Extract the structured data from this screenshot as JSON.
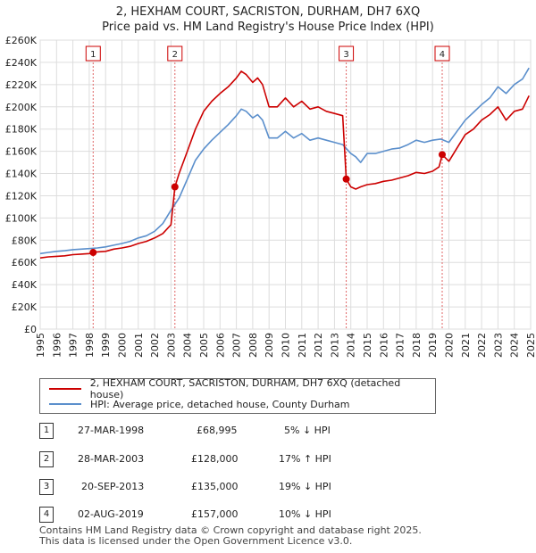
{
  "title_line1": "2, HEXHAM COURT, SACRISTON, DURHAM, DH7 6XQ",
  "title_line2": "Price paid vs. HM Land Registry's House Price Index (HPI)",
  "colors": {
    "property": "#cc0000",
    "hpi": "#5b8fcc",
    "marker_line": "#e06666",
    "grid": "#dddddd"
  },
  "legend": [
    {
      "label": "2, HEXHAM COURT, SACRISTON, DURHAM, DH7 6XQ (detached house)",
      "color": "#cc0000"
    },
    {
      "label": "HPI: Average price, detached house, County Durham",
      "color": "#5b8fcc"
    }
  ],
  "transactions": [
    {
      "num": "1",
      "date": "27-MAR-1998",
      "price": "£68,995",
      "hpi": "5% ↓ HPI"
    },
    {
      "num": "2",
      "date": "28-MAR-2003",
      "price": "£128,000",
      "hpi": "17% ↑ HPI"
    },
    {
      "num": "3",
      "date": "20-SEP-2013",
      "price": "£135,000",
      "hpi": "19% ↓ HPI"
    },
    {
      "num": "4",
      "date": "02-AUG-2019",
      "price": "£157,000",
      "hpi": "10% ↓ HPI"
    }
  ],
  "footer_line1": "Contains HM Land Registry data © Crown copyright and database right 2025.",
  "footer_line2": "This data is licensed under the Open Government Licence v3.0.",
  "chart_data": {
    "type": "line",
    "title": "2, HEXHAM COURT, SACRISTON, DURHAM, DH7 6XQ — Price paid vs. HM Land Registry's House Price Index (HPI)",
    "xlabel": "",
    "ylabel": "",
    "xlim": [
      1995,
      2025
    ],
    "ylim": [
      0,
      260000
    ],
    "x_ticks": [
      1995,
      1996,
      1997,
      1998,
      1999,
      2000,
      2001,
      2002,
      2003,
      2004,
      2005,
      2006,
      2007,
      2008,
      2009,
      2010,
      2011,
      2012,
      2013,
      2014,
      2015,
      2016,
      2017,
      2018,
      2019,
      2020,
      2021,
      2022,
      2023,
      2024,
      2025
    ],
    "y_ticks": [
      0,
      20000,
      40000,
      60000,
      80000,
      100000,
      120000,
      140000,
      160000,
      180000,
      200000,
      220000,
      240000,
      260000
    ],
    "y_tick_labels": [
      "£0",
      "£20K",
      "£40K",
      "£60K",
      "£80K",
      "£100K",
      "£120K",
      "£140K",
      "£160K",
      "£180K",
      "£200K",
      "£220K",
      "£240K",
      "£260K"
    ],
    "grid": true,
    "series": [
      {
        "name": "HPI: Average price, detached house, County Durham",
        "x": [
          1995.0,
          1995.5,
          1996.0,
          1996.5,
          1997.0,
          1997.5,
          1998.0,
          1998.5,
          1999.0,
          1999.5,
          2000.0,
          2000.5,
          2001.0,
          2001.5,
          2002.0,
          2002.5,
          2003.0,
          2003.5,
          2004.0,
          2004.5,
          2005.0,
          2005.5,
          2006.0,
          2006.5,
          2007.0,
          2007.3,
          2007.6,
          2008.0,
          2008.3,
          2008.6,
          2009.0,
          2009.5,
          2010.0,
          2010.5,
          2011.0,
          2011.5,
          2012.0,
          2012.5,
          2013.0,
          2013.5,
          2014.0,
          2014.3,
          2014.6,
          2015.0,
          2015.5,
          2016.0,
          2016.5,
          2017.0,
          2017.5,
          2018.0,
          2018.5,
          2019.0,
          2019.5,
          2020.0,
          2020.5,
          2021.0,
          2021.5,
          2022.0,
          2022.5,
          2023.0,
          2023.5,
          2024.0,
          2024.5,
          2024.9
        ],
        "values": [
          68000,
          69000,
          70000,
          70500,
          71500,
          72000,
          72500,
          73000,
          74000,
          75500,
          77000,
          79000,
          82000,
          84000,
          88000,
          95000,
          107000,
          118000,
          135000,
          152000,
          162000,
          170000,
          177000,
          184000,
          192000,
          198000,
          196000,
          190000,
          193000,
          188000,
          172000,
          172000,
          178000,
          172000,
          176000,
          170000,
          172000,
          170000,
          168000,
          166000,
          158000,
          155000,
          150000,
          158000,
          158000,
          160000,
          162000,
          163000,
          166000,
          170000,
          168000,
          170000,
          171000,
          168000,
          178000,
          188000,
          195000,
          202000,
          208000,
          218000,
          212000,
          220000,
          225000,
          235000
        ]
      },
      {
        "name": "2, HEXHAM COURT, SACRISTON, DURHAM, DH7 6XQ (detached house)",
        "x": [
          1995.0,
          1995.5,
          1996.0,
          1996.5,
          1997.0,
          1997.5,
          1998.0,
          1998.24,
          1998.5,
          1999.0,
          1999.5,
          2000.0,
          2000.5,
          2001.0,
          2001.5,
          2002.0,
          2002.5,
          2003.0,
          2003.24,
          2003.5,
          2004.0,
          2004.5,
          2005.0,
          2005.5,
          2006.0,
          2006.5,
          2007.0,
          2007.3,
          2007.6,
          2008.0,
          2008.3,
          2008.6,
          2009.0,
          2009.5,
          2010.0,
          2010.5,
          2011.0,
          2011.5,
          2012.0,
          2012.5,
          2013.0,
          2013.5,
          2013.72,
          2014.0,
          2014.3,
          2014.6,
          2015.0,
          2015.5,
          2016.0,
          2016.5,
          2017.0,
          2017.5,
          2018.0,
          2018.5,
          2019.0,
          2019.4,
          2019.59,
          2020.0,
          2020.5,
          2021.0,
          2021.5,
          2022.0,
          2022.5,
          2023.0,
          2023.5,
          2024.0,
          2024.5,
          2024.9
        ],
        "values": [
          64000,
          65000,
          65500,
          66000,
          67000,
          67500,
          68000,
          68995,
          69500,
          70000,
          72000,
          73000,
          74500,
          77000,
          79000,
          82000,
          86000,
          94000,
          128000,
          140000,
          160000,
          180000,
          196000,
          205000,
          212000,
          218000,
          226000,
          232000,
          229000,
          222000,
          226000,
          220000,
          200000,
          200000,
          208000,
          200000,
          205000,
          198000,
          200000,
          196000,
          194000,
          192000,
          135000,
          128000,
          126000,
          128000,
          130000,
          131000,
          133000,
          134000,
          136000,
          138000,
          141000,
          140000,
          142000,
          146000,
          157000,
          151000,
          163000,
          175000,
          180000,
          188000,
          193000,
          200000,
          188000,
          196000,
          198000,
          210000
        ]
      }
    ],
    "annotations": [
      {
        "label": "1",
        "x": 1998.24,
        "y": 68995
      },
      {
        "label": "2",
        "x": 2003.24,
        "y": 128000
      },
      {
        "label": "3",
        "x": 2013.72,
        "y": 135000
      },
      {
        "label": "4",
        "x": 2019.59,
        "y": 157000
      }
    ]
  }
}
